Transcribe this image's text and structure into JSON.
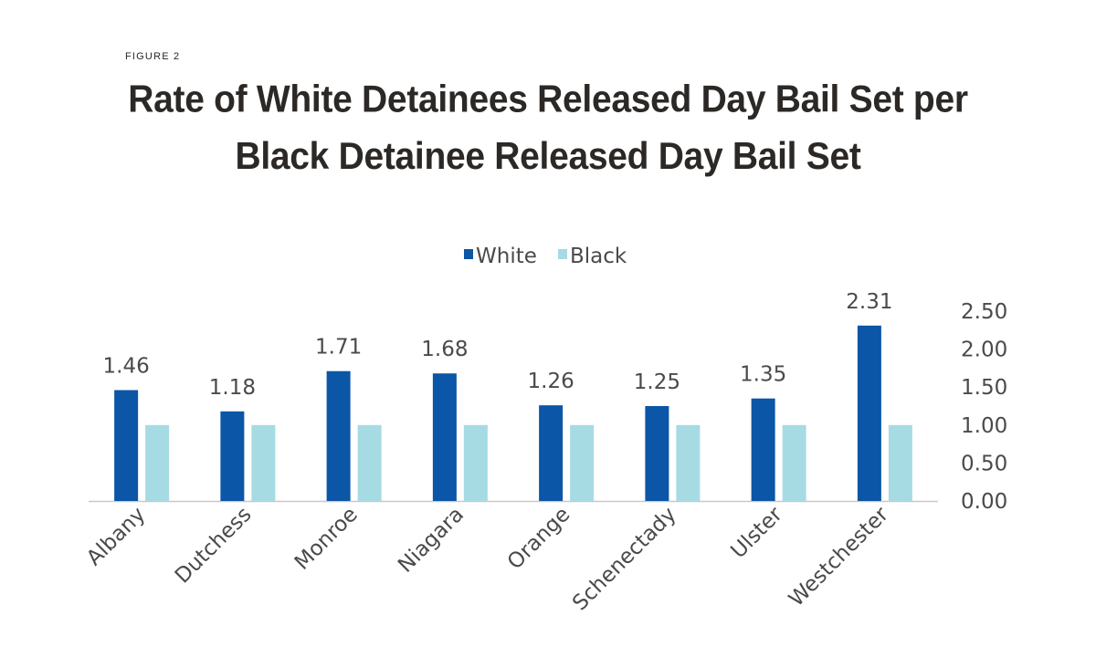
{
  "figure_label": "FIGURE 2",
  "title_line1": "Rate of White Detainees Released Day Bail Set per",
  "title_line2": "Black Detainee Released Day Bail Set",
  "colors": {
    "white_series": "#0b56a6",
    "black_series": "#a6dbe4",
    "axis": "#c8c8c8",
    "text": "#4a4a4a"
  },
  "chart_data": {
    "type": "bar",
    "title": "Rate of White Detainees Released Day Bail Set per Black Detainee Released Day Bail Set",
    "categories": [
      "Albany",
      "Dutchess",
      "Monroe",
      "Niagara",
      "Orange",
      "Schenectady",
      "Ulster",
      "Westchester"
    ],
    "series": [
      {
        "name": "White",
        "values": [
          1.46,
          1.18,
          1.71,
          1.68,
          1.26,
          1.25,
          1.35,
          2.31
        ],
        "data_labels": [
          "1.46",
          "1.18",
          "1.71",
          "1.68",
          "1.26",
          "1.25",
          "1.35",
          "2.31"
        ]
      },
      {
        "name": "Black",
        "values": [
          1,
          1,
          1,
          1,
          1,
          1,
          1,
          1
        ]
      }
    ],
    "y_axis_side": "right",
    "yticks": [
      "0.00",
      "0.50",
      "1.00",
      "1.50",
      "2.00",
      "2.50"
    ],
    "ytick_values": [
      0,
      0.5,
      1,
      1.5,
      2,
      2.5
    ],
    "ylim": [
      0,
      2.5
    ],
    "legend_position": "top-center",
    "grid": false,
    "xlabel": "",
    "ylabel": ""
  }
}
